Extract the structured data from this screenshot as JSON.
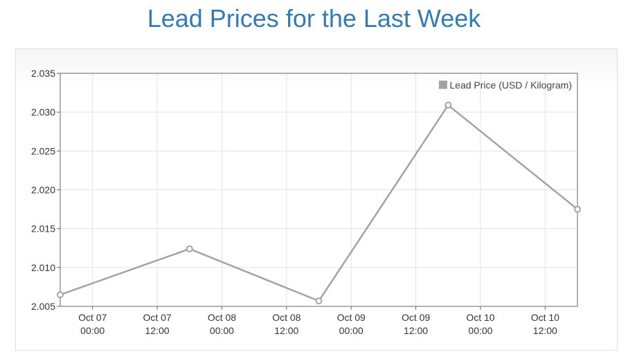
{
  "title": "Lead Prices for the Last Week",
  "chart_data": {
    "type": "line",
    "title": "Lead Prices for the Last Week",
    "xlabel": "",
    "ylabel": "",
    "ylim": [
      2.005,
      2.035
    ],
    "y_ticks": [
      "2.005",
      "2.010",
      "2.015",
      "2.020",
      "2.025",
      "2.030",
      "2.035"
    ],
    "x_range": [
      "2023-10-06T18:00",
      "2023-10-10T18:00"
    ],
    "x_ticks": [
      {
        "t": "2023-10-07T00:00",
        "line1": "Oct 07",
        "line2": "00:00"
      },
      {
        "t": "2023-10-07T12:00",
        "line1": "Oct 07",
        "line2": "12:00"
      },
      {
        "t": "2023-10-08T00:00",
        "line1": "Oct 08",
        "line2": "00:00"
      },
      {
        "t": "2023-10-08T12:00",
        "line1": "Oct 08",
        "line2": "12:00"
      },
      {
        "t": "2023-10-09T00:00",
        "line1": "Oct 09",
        "line2": "00:00"
      },
      {
        "t": "2023-10-09T12:00",
        "line1": "Oct 09",
        "line2": "12:00"
      },
      {
        "t": "2023-10-10T00:00",
        "line1": "Oct 10",
        "line2": "00:00"
      },
      {
        "t": "2023-10-10T12:00",
        "line1": "Oct 10",
        "line2": "12:00"
      }
    ],
    "grid": true,
    "legend_position": "top-right",
    "series": [
      {
        "name": "Lead Price (USD / Kilogram)",
        "color": "#a3a3a3",
        "x": [
          "2023-10-06T18:00",
          "2023-10-07T18:00",
          "2023-10-08T18:00",
          "2023-10-09T18:00",
          "2023-10-10T18:00"
        ],
        "values": [
          2.0065,
          2.0124,
          2.0057,
          2.0309,
          2.0175
        ]
      }
    ]
  }
}
